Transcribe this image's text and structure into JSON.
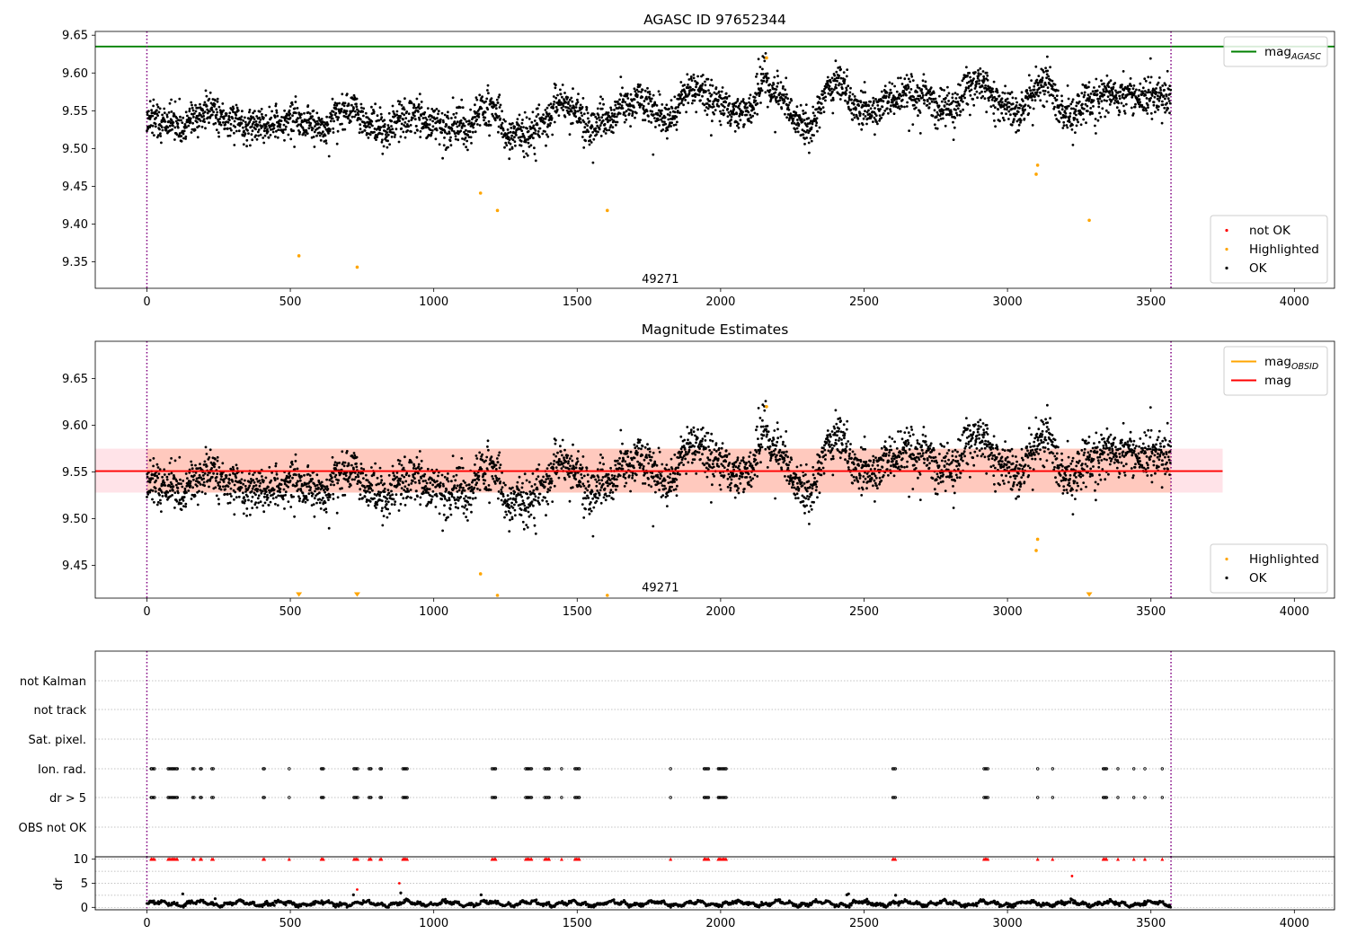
{
  "chart_data": [
    {
      "type": "scatter",
      "title": "AGASC ID 97652344",
      "xlim": [
        -180,
        4140
      ],
      "ylim": [
        9.315,
        9.655
      ],
      "xticks": [
        0,
        500,
        1000,
        1500,
        2000,
        2500,
        3000,
        3500,
        4000
      ],
      "yticks": [
        9.35,
        9.4,
        9.45,
        9.5,
        9.55,
        9.6,
        9.65
      ],
      "vlines": [
        0,
        3570
      ],
      "hline": {
        "label": "mag",
        "label_sub": "AGASC",
        "y": 9.635,
        "x_range": [
          -180,
          4140
        ],
        "color": "#008000"
      },
      "annotation": {
        "text": "49271",
        "x": 1790,
        "y": 9.322
      },
      "series": [
        {
          "name": "not OK",
          "color": "#ff0000",
          "points": []
        },
        {
          "name": "Highlighted",
          "color": "#ffa500",
          "points": [
            [
              530,
              9.358
            ],
            [
              733,
              9.343
            ],
            [
              1163,
              9.441
            ],
            [
              1222,
              9.418
            ],
            [
              1605,
              9.418
            ],
            [
              2160,
              9.62
            ],
            [
              3100,
              9.466
            ],
            [
              3105,
              9.478
            ],
            [
              3285,
              9.405
            ]
          ]
        },
        {
          "name": "OK",
          "color": "#000000",
          "n": 3570,
          "trend": [
            [
              0,
              9.535
            ],
            [
              100,
              9.527
            ],
            [
              200,
              9.555
            ],
            [
              300,
              9.528
            ],
            [
              400,
              9.535
            ],
            [
              500,
              9.533
            ],
            [
              600,
              9.532
            ],
            [
              700,
              9.55
            ],
            [
              800,
              9.524
            ],
            [
              900,
              9.545
            ],
            [
              1000,
              9.53
            ],
            [
              1100,
              9.53
            ],
            [
              1200,
              9.555
            ],
            [
              1250,
              9.515
            ],
            [
              1350,
              9.53
            ],
            [
              1450,
              9.56
            ],
            [
              1550,
              9.535
            ],
            [
              1650,
              9.55
            ],
            [
              1750,
              9.566
            ],
            [
              1800,
              9.54
            ],
            [
              1900,
              9.575
            ],
            [
              2000,
              9.562
            ],
            [
              2100,
              9.548
            ],
            [
              2150,
              9.585
            ],
            [
              2200,
              9.57
            ],
            [
              2300,
              9.528
            ],
            [
              2400,
              9.585
            ],
            [
              2500,
              9.555
            ],
            [
              2600,
              9.56
            ],
            [
              2700,
              9.58
            ],
            [
              2800,
              9.548
            ],
            [
              2900,
              9.59
            ],
            [
              3000,
              9.555
            ],
            [
              3050,
              9.54
            ],
            [
              3100,
              9.58
            ],
            [
              3150,
              9.585
            ],
            [
              3200,
              9.545
            ],
            [
              3300,
              9.56
            ],
            [
              3400,
              9.575
            ],
            [
              3570,
              9.56
            ]
          ],
          "scatter_sd": 0.012
        }
      ],
      "legends": [
        {
          "position": "upper-right",
          "entries": [
            {
              "label": "mag",
              "sub": "AGASC",
              "kind": "line",
              "color": "#008000"
            }
          ]
        },
        {
          "position": "lower-right",
          "entries": [
            {
              "label": "not OK",
              "kind": "dot",
              "color": "#ff0000"
            },
            {
              "label": "Highlighted",
              "kind": "dot",
              "color": "#ffa500"
            },
            {
              "label": "OK",
              "kind": "dot",
              "color": "#000000"
            }
          ]
        }
      ]
    },
    {
      "type": "scatter",
      "title": "Magnitude Estimates",
      "xlim": [
        -180,
        4140
      ],
      "ylim": [
        9.415,
        9.69
      ],
      "xticks": [
        0,
        500,
        1000,
        1500,
        2000,
        2500,
        3000,
        3500,
        4000
      ],
      "yticks": [
        9.45,
        9.5,
        9.55,
        9.6,
        9.65
      ],
      "vlines": [
        0,
        3570
      ],
      "bands": [
        {
          "color": "#ffc0cb",
          "opacity": 0.45,
          "y_range": [
            9.528,
            9.575
          ],
          "x_range": [
            -180,
            3750
          ]
        },
        {
          "color": "#ffa07a",
          "opacity": 0.38,
          "y_range": [
            9.528,
            9.575
          ],
          "x_range": [
            0,
            3570
          ]
        }
      ],
      "hlines": [
        {
          "label": "mag",
          "y": 9.551,
          "x_range": [
            -180,
            3750
          ],
          "color": "#ff0000"
        }
      ],
      "annotation": {
        "text": "49271",
        "x": 1790,
        "y": 9.422
      },
      "clipped_markers": [
        530,
        733,
        3285
      ],
      "series": [
        {
          "name": "Highlighted",
          "color": "#ffa500",
          "points": [
            [
              1163,
              9.441
            ],
            [
              1222,
              9.418
            ],
            [
              1605,
              9.418
            ],
            [
              2160,
              9.62
            ],
            [
              3100,
              9.466
            ],
            [
              3105,
              9.478
            ]
          ]
        },
        {
          "name": "OK",
          "color": "#000000",
          "same_as": "panel1"
        }
      ],
      "legends": [
        {
          "position": "upper-right",
          "entries": [
            {
              "label": "mag",
              "sub": "OBSID",
              "kind": "line",
              "color": "#ffa500"
            },
            {
              "label": "mag",
              "kind": "line",
              "color": "#ff0000"
            }
          ]
        },
        {
          "position": "lower-right",
          "entries": [
            {
              "label": "Highlighted",
              "kind": "dot",
              "color": "#ffa500"
            },
            {
              "label": "OK",
              "kind": "dot",
              "color": "#000000"
            }
          ]
        }
      ]
    },
    {
      "type": "scatter",
      "title": "",
      "xlim": [
        -180,
        4140
      ],
      "xticks": [
        0,
        500,
        1000,
        1500,
        2000,
        2500,
        3000,
        3500,
        4000
      ],
      "vlines": [
        0,
        3570
      ],
      "flag_rows": [
        "not Kalman",
        "not track",
        "Sat. pixel.",
        "Ion. rad.",
        "dr > 5",
        "OBS not OK"
      ],
      "flag_times": [
        {
          "t": 20,
          "n": 4
        },
        {
          "t": 90,
          "n": 9
        },
        {
          "t": 162,
          "n": 2
        },
        {
          "t": 188,
          "n": 2
        },
        {
          "t": 228,
          "n": 2
        },
        {
          "t": 408,
          "n": 2
        },
        {
          "t": 497,
          "n": 1
        },
        {
          "t": 612,
          "n": 3
        },
        {
          "t": 728,
          "n": 4
        },
        {
          "t": 778,
          "n": 3
        },
        {
          "t": 815,
          "n": 2
        },
        {
          "t": 900,
          "n": 5
        },
        {
          "t": 1210,
          "n": 4
        },
        {
          "t": 1330,
          "n": 6
        },
        {
          "t": 1395,
          "n": 5
        },
        {
          "t": 1445,
          "n": 1
        },
        {
          "t": 1500,
          "n": 5
        },
        {
          "t": 1825,
          "n": 1
        },
        {
          "t": 1950,
          "n": 5
        },
        {
          "t": 2005,
          "n": 8
        },
        {
          "t": 2605,
          "n": 3
        },
        {
          "t": 2925,
          "n": 4
        },
        {
          "t": 3105,
          "n": 1
        },
        {
          "t": 3158,
          "n": 1
        },
        {
          "t": 3340,
          "n": 4
        },
        {
          "t": 3385,
          "n": 1
        },
        {
          "t": 3440,
          "n": 1
        },
        {
          "t": 3478,
          "n": 1
        },
        {
          "t": 3540,
          "n": 1
        }
      ],
      "dr_subplot": {
        "ylabel": "dr",
        "ylim": [
          -0.5,
          10.5
        ],
        "yticks": [
          0,
          5,
          10
        ],
        "clipped_value": 10,
        "points": [
          [
            125,
            2.8
          ],
          [
            238,
            1.8
          ],
          [
            720,
            2.6
          ],
          [
            733,
            3.7
          ],
          [
            880,
            5.0
          ],
          [
            885,
            3.0
          ],
          [
            1165,
            2.6
          ],
          [
            2440,
            2.6
          ],
          [
            2446,
            2.8
          ],
          [
            2610,
            2.5
          ],
          [
            3225,
            6.5
          ]
        ]
      }
    }
  ]
}
